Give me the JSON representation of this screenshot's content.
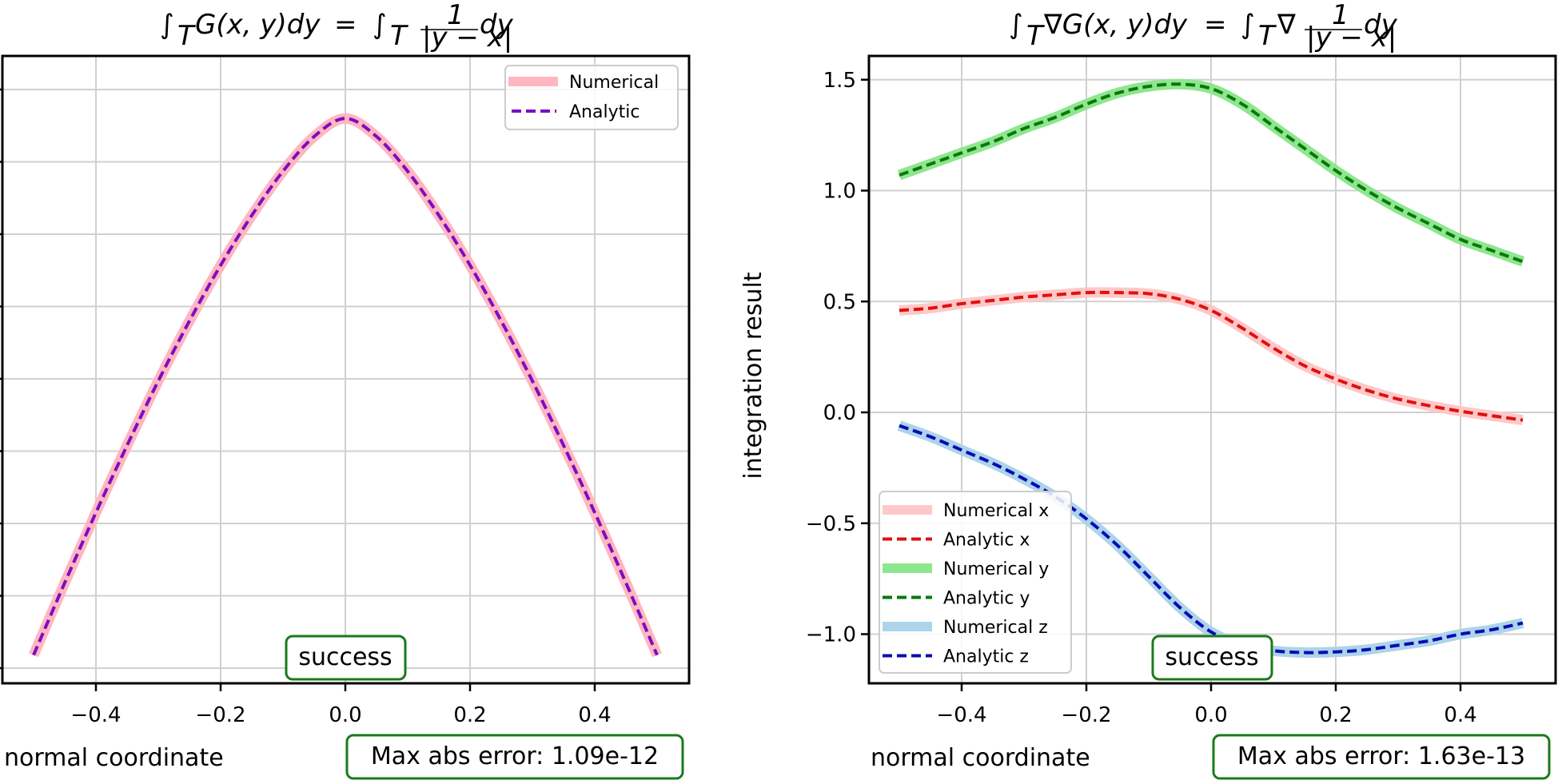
{
  "chart_data": [
    {
      "type": "line",
      "title": "∫_T G(x, y)dy = ∫_T 1/|y − x| dy",
      "title_parts": {
        "lhs_integrand": "G(x, y)dy",
        "eq": "=",
        "rhs_num": "1",
        "rhs_den": "|y − x|",
        "rhs_tail": "dy",
        "sub": "T"
      },
      "xlabel": "normal coordinate",
      "ylabel": "",
      "xlim": [
        -0.5,
        0.5
      ],
      "xticks": [
        -0.4,
        -0.2,
        0.0,
        0.2,
        0.4
      ],
      "xtick_labels": [
        "−0.4",
        "−0.2",
        "0.0",
        "0.2",
        "0.4"
      ],
      "ytick_labels": [],
      "y_units_note": "y tick labels not visible; values expressed in gridline units (0 = lowest gridline, 8 = highest)",
      "ylim": [
        -0.2,
        8.6
      ],
      "grid": true,
      "legend": {
        "position": "top-right",
        "entries": [
          {
            "label": "Numerical",
            "style": "solid-thick",
            "color": "#ffb6c1"
          },
          {
            "label": "Analytic",
            "style": "dashed",
            "color": "#7b0fbf"
          }
        ]
      },
      "x": [
        -0.5,
        -0.45,
        -0.4,
        -0.35,
        -0.3,
        -0.25,
        -0.2,
        -0.15,
        -0.1,
        -0.05,
        0.0,
        0.05,
        0.1,
        0.15,
        0.2,
        0.25,
        0.3,
        0.35,
        0.4,
        0.45,
        0.5
      ],
      "series": [
        {
          "name": "Numerical",
          "color": "#ffb6c1",
          "style": "solid-thick",
          "values": [
            0.18,
            1.18,
            2.15,
            3.08,
            3.97,
            4.8,
            5.57,
            6.26,
            6.87,
            7.35,
            7.6,
            7.35,
            6.87,
            6.26,
            5.57,
            4.8,
            3.97,
            3.08,
            2.15,
            1.18,
            0.18
          ]
        },
        {
          "name": "Analytic",
          "color": "#7b0fbf",
          "style": "dashed",
          "values": [
            0.18,
            1.18,
            2.15,
            3.08,
            3.97,
            4.8,
            5.57,
            6.26,
            6.87,
            7.35,
            7.6,
            7.35,
            6.87,
            6.26,
            5.57,
            4.8,
            3.97,
            3.08,
            2.15,
            1.18,
            0.18
          ]
        }
      ],
      "annotations": {
        "status": "success",
        "error": "Max abs error: 1.09e-12"
      }
    },
    {
      "type": "line",
      "title": "∫_T ∇G(x, y)dy = ∫_T ∇ 1/|y − x| dy",
      "title_parts": {
        "lhs_integrand": "∇G(x, y)dy",
        "eq": "=",
        "rhs_pre": "∇",
        "rhs_num": "1",
        "rhs_den": "|y − x|",
        "rhs_tail": "dy",
        "sub": "T"
      },
      "xlabel": "normal coordinate",
      "ylabel": "integration result",
      "xlim": [
        -0.5,
        0.5
      ],
      "ylim": [
        -1.23,
        1.62
      ],
      "xticks": [
        -0.4,
        -0.2,
        0.0,
        0.2,
        0.4
      ],
      "xtick_labels": [
        "−0.4",
        "−0.2",
        "0.0",
        "0.2",
        "0.4"
      ],
      "yticks": [
        1.5,
        1.0,
        0.5,
        0.0,
        -0.5,
        -1.0
      ],
      "ytick_labels": [
        "1.5",
        "1.0",
        "0.5",
        "0.0",
        "−0.5",
        "−1.0"
      ],
      "grid": true,
      "legend": {
        "position": "lower-left",
        "entries": [
          {
            "label": "Numerical x",
            "style": "solid-thick",
            "color": "#ffc8c8"
          },
          {
            "label": "Analytic x",
            "style": "dashed",
            "color": "#e01010"
          },
          {
            "label": "Numerical y",
            "style": "solid-thick",
            "color": "#8ee68e"
          },
          {
            "label": "Analytic y",
            "style": "dashed",
            "color": "#0a780a"
          },
          {
            "label": "Numerical z",
            "style": "solid-thick",
            "color": "#acd4ea"
          },
          {
            "label": "Analytic z",
            "style": "dashed",
            "color": "#0a0ab4"
          }
        ]
      },
      "x": [
        -0.5,
        -0.45,
        -0.4,
        -0.35,
        -0.3,
        -0.25,
        -0.2,
        -0.15,
        -0.1,
        -0.05,
        0.0,
        0.05,
        0.1,
        0.15,
        0.2,
        0.25,
        0.3,
        0.35,
        0.4,
        0.45,
        0.5
      ],
      "series": [
        {
          "name": "Numerical x",
          "color": "#ffc8c8",
          "style": "solid-thick",
          "values": [
            0.46,
            0.47,
            0.49,
            0.505,
            0.52,
            0.53,
            0.54,
            0.54,
            0.535,
            0.51,
            0.46,
            0.38,
            0.29,
            0.21,
            0.15,
            0.1,
            0.06,
            0.03,
            0.005,
            -0.015,
            -0.035
          ]
        },
        {
          "name": "Analytic x",
          "color": "#e01010",
          "style": "dashed",
          "values": [
            0.46,
            0.47,
            0.49,
            0.505,
            0.52,
            0.53,
            0.54,
            0.54,
            0.535,
            0.51,
            0.46,
            0.38,
            0.29,
            0.21,
            0.15,
            0.1,
            0.06,
            0.03,
            0.005,
            -0.015,
            -0.035
          ]
        },
        {
          "name": "Numerical y",
          "color": "#8ee68e",
          "style": "solid-thick",
          "values": [
            1.07,
            1.12,
            1.17,
            1.22,
            1.28,
            1.33,
            1.39,
            1.44,
            1.47,
            1.48,
            1.46,
            1.39,
            1.29,
            1.19,
            1.09,
            1.0,
            0.92,
            0.85,
            0.78,
            0.73,
            0.68
          ]
        },
        {
          "name": "Analytic y",
          "color": "#0a780a",
          "style": "dashed",
          "values": [
            1.07,
            1.12,
            1.17,
            1.22,
            1.28,
            1.33,
            1.39,
            1.44,
            1.47,
            1.48,
            1.46,
            1.39,
            1.29,
            1.19,
            1.09,
            1.0,
            0.92,
            0.85,
            0.78,
            0.73,
            0.68
          ]
        },
        {
          "name": "Numerical z",
          "color": "#acd4ea",
          "style": "solid-thick",
          "values": [
            -0.06,
            -0.11,
            -0.17,
            -0.23,
            -0.3,
            -0.38,
            -0.48,
            -0.6,
            -0.74,
            -0.88,
            -0.99,
            -1.05,
            -1.075,
            -1.083,
            -1.08,
            -1.07,
            -1.05,
            -1.03,
            -1.0,
            -0.98,
            -0.95
          ]
        },
        {
          "name": "Analytic z",
          "color": "#0a0ab4",
          "style": "dashed",
          "values": [
            -0.06,
            -0.11,
            -0.17,
            -0.23,
            -0.3,
            -0.38,
            -0.48,
            -0.6,
            -0.74,
            -0.88,
            -0.99,
            -1.05,
            -1.075,
            -1.083,
            -1.08,
            -1.07,
            -1.05,
            -1.03,
            -1.0,
            -0.98,
            -0.95
          ]
        }
      ],
      "annotations": {
        "status": "success",
        "error": "Max abs error: 1.63e-13"
      }
    }
  ],
  "accent": {
    "badge_border": "#1a7a1a",
    "grid": "#d0d0d0"
  }
}
